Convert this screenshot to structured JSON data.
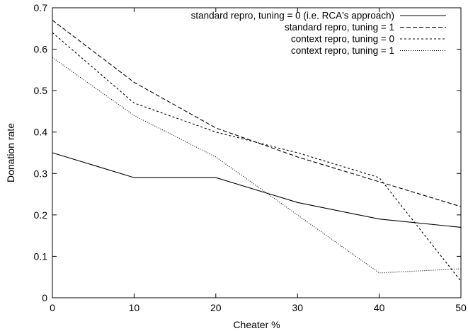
{
  "chart_data": {
    "type": "line",
    "xlabel": "Cheater %",
    "ylabel": "Donation rate",
    "xlim": [
      0,
      50
    ],
    "ylim": [
      0,
      0.7
    ],
    "x_ticks": [
      0,
      10,
      20,
      30,
      40,
      50
    ],
    "y_ticks": [
      0,
      0.1,
      0.2,
      0.3,
      0.4,
      0.5,
      0.6,
      0.7
    ],
    "x_tick_labels": [
      "0",
      "10",
      "20",
      "30",
      "40",
      "50"
    ],
    "y_tick_labels": [
      "0",
      "0.1",
      "0.2",
      "0.3",
      "0.4",
      "0.5",
      "0.6",
      "0.7"
    ],
    "grid": false,
    "legend_position": "top-right",
    "x": [
      0,
      10,
      20,
      30,
      40,
      50
    ],
    "series": [
      {
        "name": "standard repro, tuning = 0 (i.e. RCA's approach)",
        "style": "solid",
        "values": [
          0.35,
          0.29,
          0.29,
          0.23,
          0.19,
          0.17
        ]
      },
      {
        "name": "standard repro, tuning = 1",
        "style": "dashed",
        "values": [
          0.67,
          0.52,
          0.41,
          0.34,
          0.28,
          0.22
        ]
      },
      {
        "name": "context repro, tuning = 0",
        "style": "short-dashed",
        "values": [
          0.64,
          0.47,
          0.4,
          0.35,
          0.29,
          0.04
        ]
      },
      {
        "name": "context repro, tuning = 1",
        "style": "dotted",
        "values": [
          0.58,
          0.44,
          0.34,
          0.2,
          0.06,
          0.07
        ]
      }
    ]
  }
}
